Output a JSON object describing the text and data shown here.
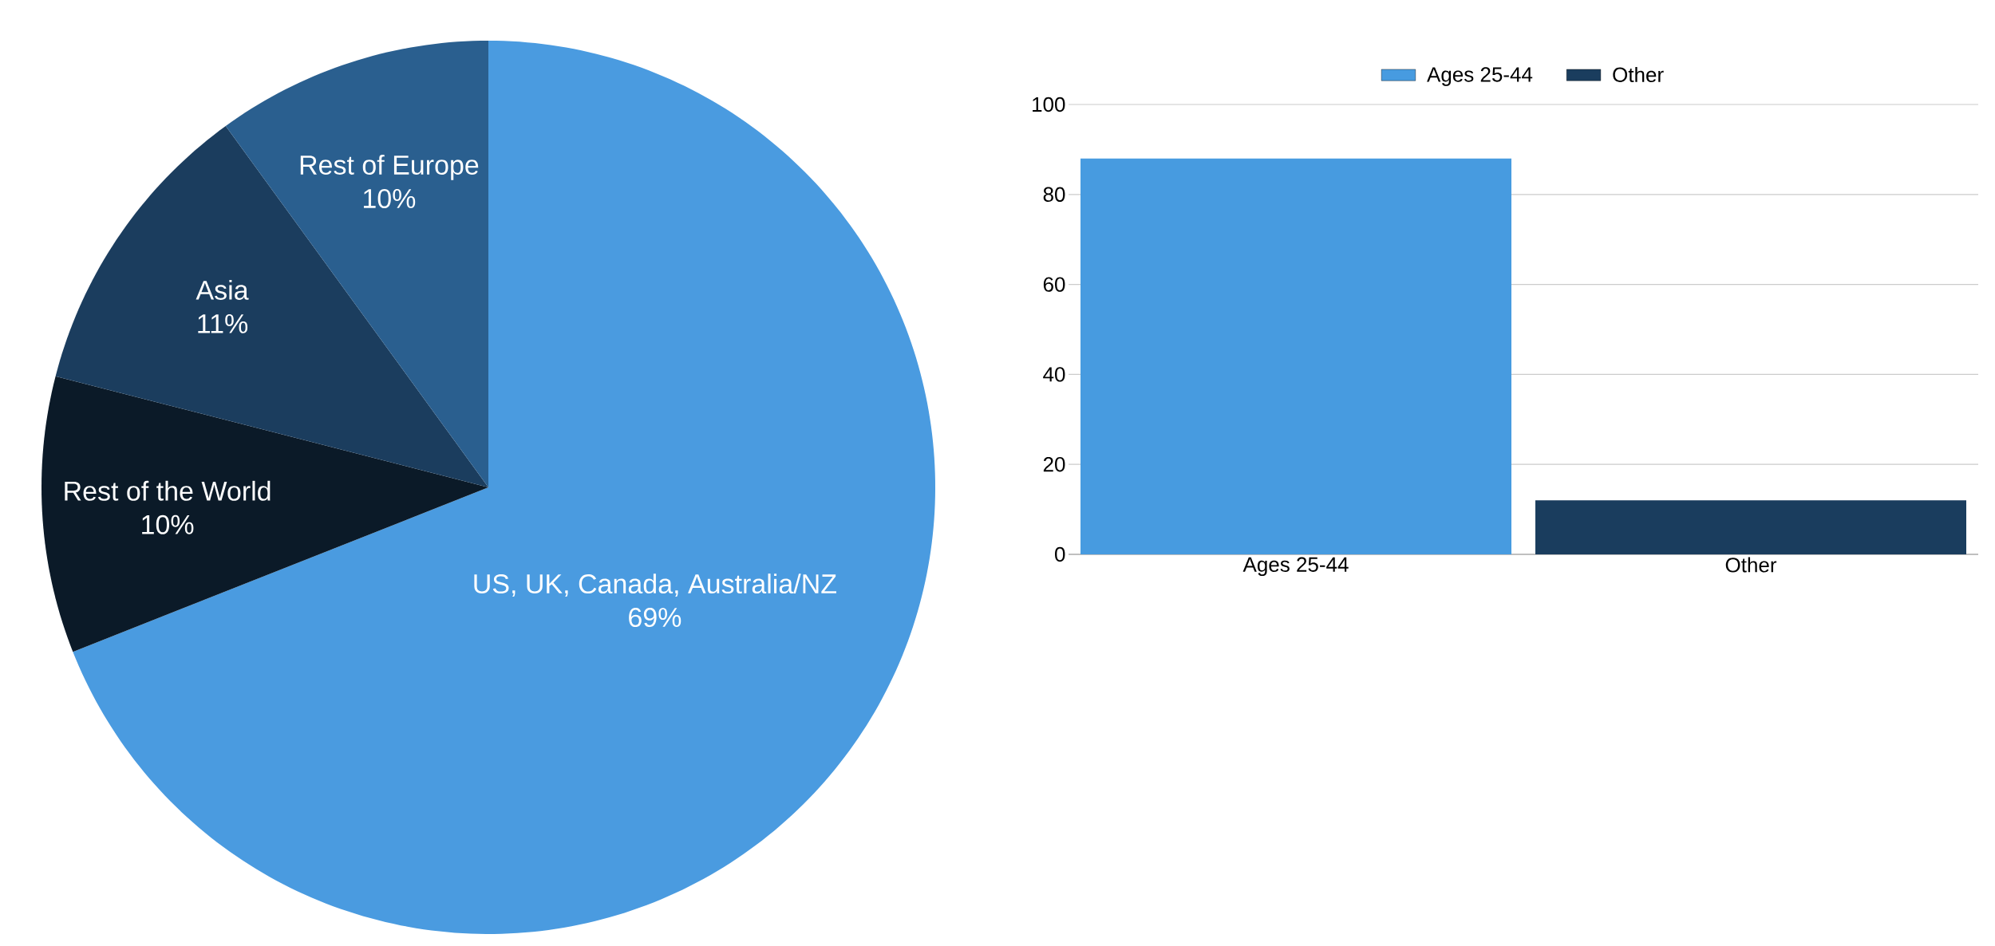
{
  "chart_data": [
    {
      "type": "pie",
      "categories": [
        "US, UK, Canada, Australia/NZ",
        "Rest of the World",
        "Asia",
        "Rest of Europe"
      ],
      "values": [
        69,
        10,
        11,
        10
      ],
      "value_labels": [
        "69%",
        "10%",
        "11%",
        "10%"
      ],
      "colors": [
        "#4a9be0",
        "#0b1a28",
        "#1b3d5e",
        "#2a5f8f"
      ]
    },
    {
      "type": "bar",
      "categories": [
        "Ages 25-44",
        "Other"
      ],
      "series": [
        {
          "name": "Ages 25-44",
          "color": "#479be0",
          "values": [
            88,
            null
          ]
        },
        {
          "name": "Other",
          "color": "#1a3d5e",
          "values": [
            null,
            12
          ]
        }
      ],
      "ylim": [
        0,
        100
      ],
      "yticks": [
        0,
        20,
        40,
        60,
        80,
        100
      ],
      "grid": "y",
      "legend": "top"
    }
  ]
}
